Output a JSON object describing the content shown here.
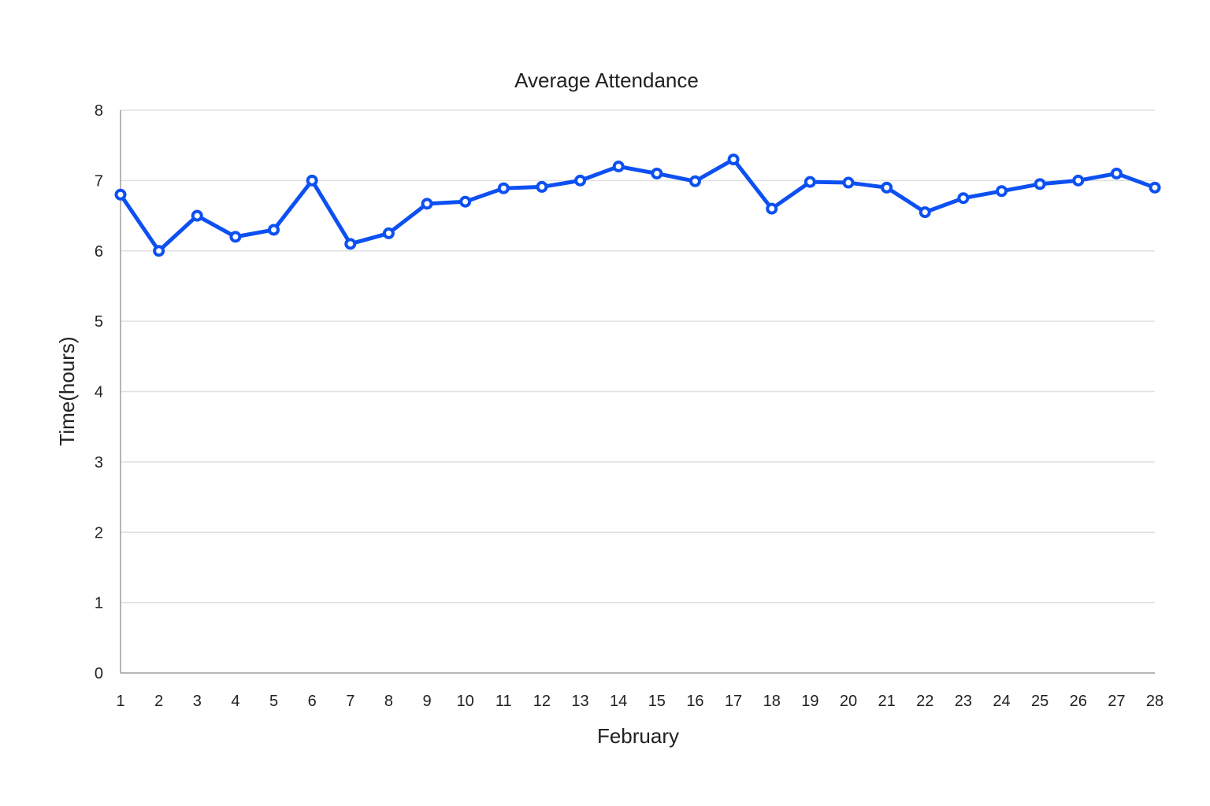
{
  "chart_data": {
    "type": "line",
    "title": "Average Attendance",
    "xlabel": "February",
    "ylabel": "Time(hours)",
    "ylim": [
      0,
      8
    ],
    "yticks": [
      0,
      1,
      2,
      3,
      4,
      5,
      6,
      7,
      8
    ],
    "grid": true,
    "legend": "none",
    "categories": [
      "1",
      "2",
      "3",
      "4",
      "5",
      "6",
      "7",
      "8",
      "9",
      "10",
      "11",
      "12",
      "13",
      "14",
      "15",
      "16",
      "17",
      "18",
      "19",
      "20",
      "21",
      "22",
      "23",
      "24",
      "25",
      "26",
      "27",
      "28"
    ],
    "series": [
      {
        "color": "#0d50f2",
        "values": [
          6.8,
          6.0,
          6.5,
          6.2,
          6.3,
          7.0,
          6.1,
          6.25,
          6.67,
          6.7,
          6.89,
          6.91,
          7.0,
          7.2,
          7.1,
          6.99,
          7.3,
          6.6,
          6.98,
          6.97,
          6.9,
          6.55,
          6.75,
          6.85,
          6.95,
          7.0,
          7.1,
          6.9
        ]
      }
    ]
  }
}
